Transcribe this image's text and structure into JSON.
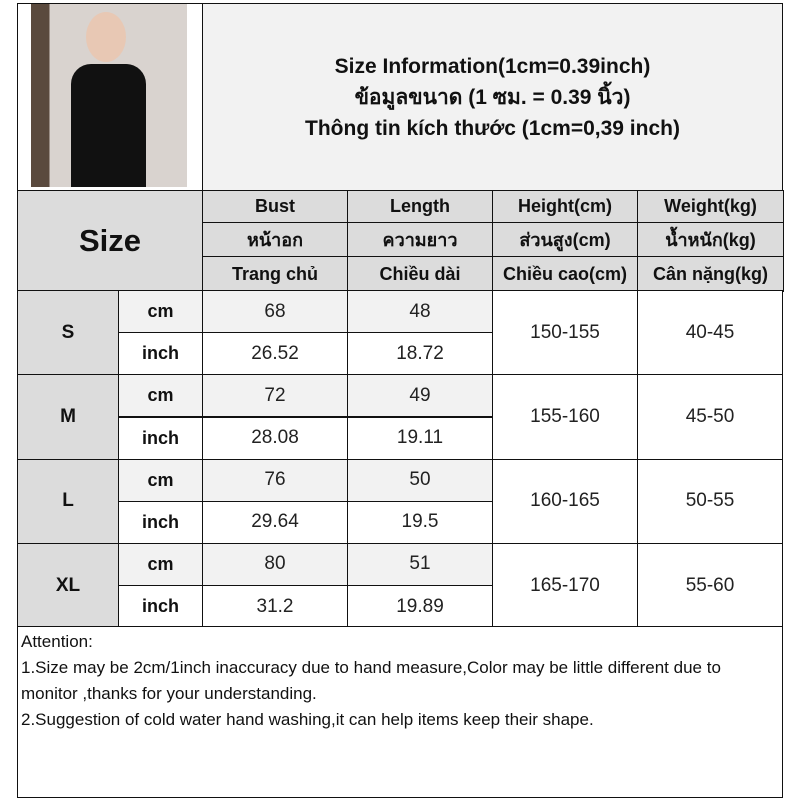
{
  "title": {
    "line1": "Size Information(1cm=0.39inch)",
    "line2": "ข้อมูลขนาด (1 ซม. = 0.39 นิ้ว)",
    "line3": "Thông tin kích thước (1cm=0,39 inch)"
  },
  "size_header": "Size",
  "columns": [
    {
      "en": "Bust",
      "th": "หน้าอก",
      "vi": "Trang chủ"
    },
    {
      "en": "Length",
      "th": "ความยาว",
      "vi": "Chiều dài"
    },
    {
      "en": "Height(cm)",
      "th": "ส่วนสูง(cm)",
      "vi": "Chiều cao(cm)"
    },
    {
      "en": "Weight(kg)",
      "th": "น้ำหนัก(kg)",
      "vi": "Cân nặng(kg)"
    }
  ],
  "units": {
    "cm": "cm",
    "inch": "inch"
  },
  "rows": [
    {
      "size": "S",
      "cm": [
        "68",
        "48"
      ],
      "inch": [
        "26.52",
        "18.72"
      ],
      "height": "150-155",
      "weight": "40-45"
    },
    {
      "size": "M",
      "cm": [
        "72",
        "49"
      ],
      "inch": [
        "28.08",
        "19.11"
      ],
      "height": "155-160",
      "weight": "45-50"
    },
    {
      "size": "L",
      "cm": [
        "76",
        "50"
      ],
      "inch": [
        "29.64",
        "19.5"
      ],
      "height": "160-165",
      "weight": "50-55"
    },
    {
      "size": "XL",
      "cm": [
        "80",
        "51"
      ],
      "inch": [
        "31.2",
        "19.89"
      ],
      "height": "165-170",
      "weight": "55-60"
    }
  ],
  "attention": {
    "heading": "Attention:",
    "note1": "1.Size may be 2cm/1inch inaccuracy due to hand measure,Color may be little different due to monitor ,thanks for your understanding.",
    "note2": "2.Suggestion of cold water hand washing,it can help items keep their shape."
  }
}
